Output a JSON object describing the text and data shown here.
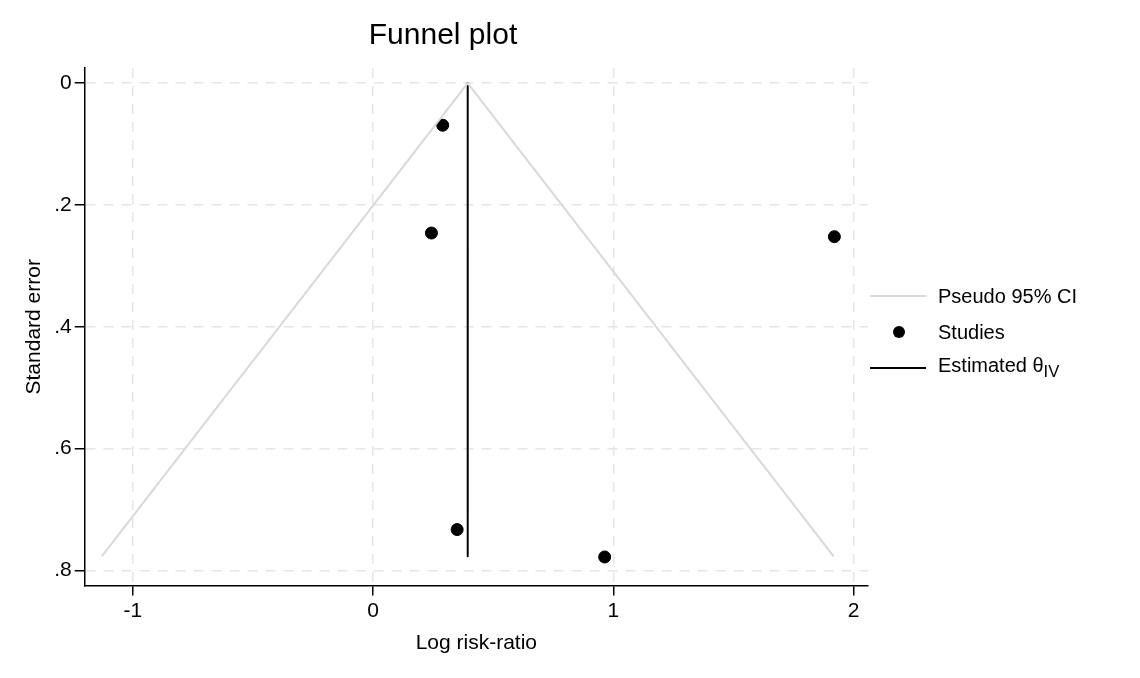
{
  "chart_data": {
    "type": "scatter",
    "title": "Funnel plot",
    "xlabel": "Log risk-ratio",
    "ylabel": "Standard error",
    "xlim": [
      -1.2,
      2.06
    ],
    "xticks": [
      -1,
      0,
      1,
      2
    ],
    "ylim": [
      0.825,
      -0.025
    ],
    "yticks": [
      0,
      {
        "value": 0.2,
        "label": ".2"
      },
      {
        "value": 0.4,
        "label": ".4"
      },
      {
        "value": 0.6,
        "label": ".6"
      },
      {
        "value": 0.8,
        "label": ".8"
      }
    ],
    "grid": true,
    "legend": "right",
    "series": [
      {
        "name": "Pseudo 95% CI",
        "type": "line",
        "color": "#d9d9d9",
        "marker": "none",
        "x": [
          -1.129,
          0.394,
          1.917
        ],
        "values": [
          0.777,
          0,
          0.777
        ]
      },
      {
        "name": "Studies",
        "type": "scatter",
        "color": "#000000",
        "marker": "circle",
        "x": [
          0.29,
          0.243,
          1.92,
          0.35,
          0.964
        ],
        "values": [
          0.069,
          0.246,
          0.252,
          0.733,
          0.778
        ]
      },
      {
        "name": "Estimated θ$_{IV}$",
        "type": "line",
        "color": "#000000",
        "marker": "none",
        "x": [
          0.394,
          0.394
        ],
        "values": [
          0,
          0.777
        ]
      }
    ]
  }
}
